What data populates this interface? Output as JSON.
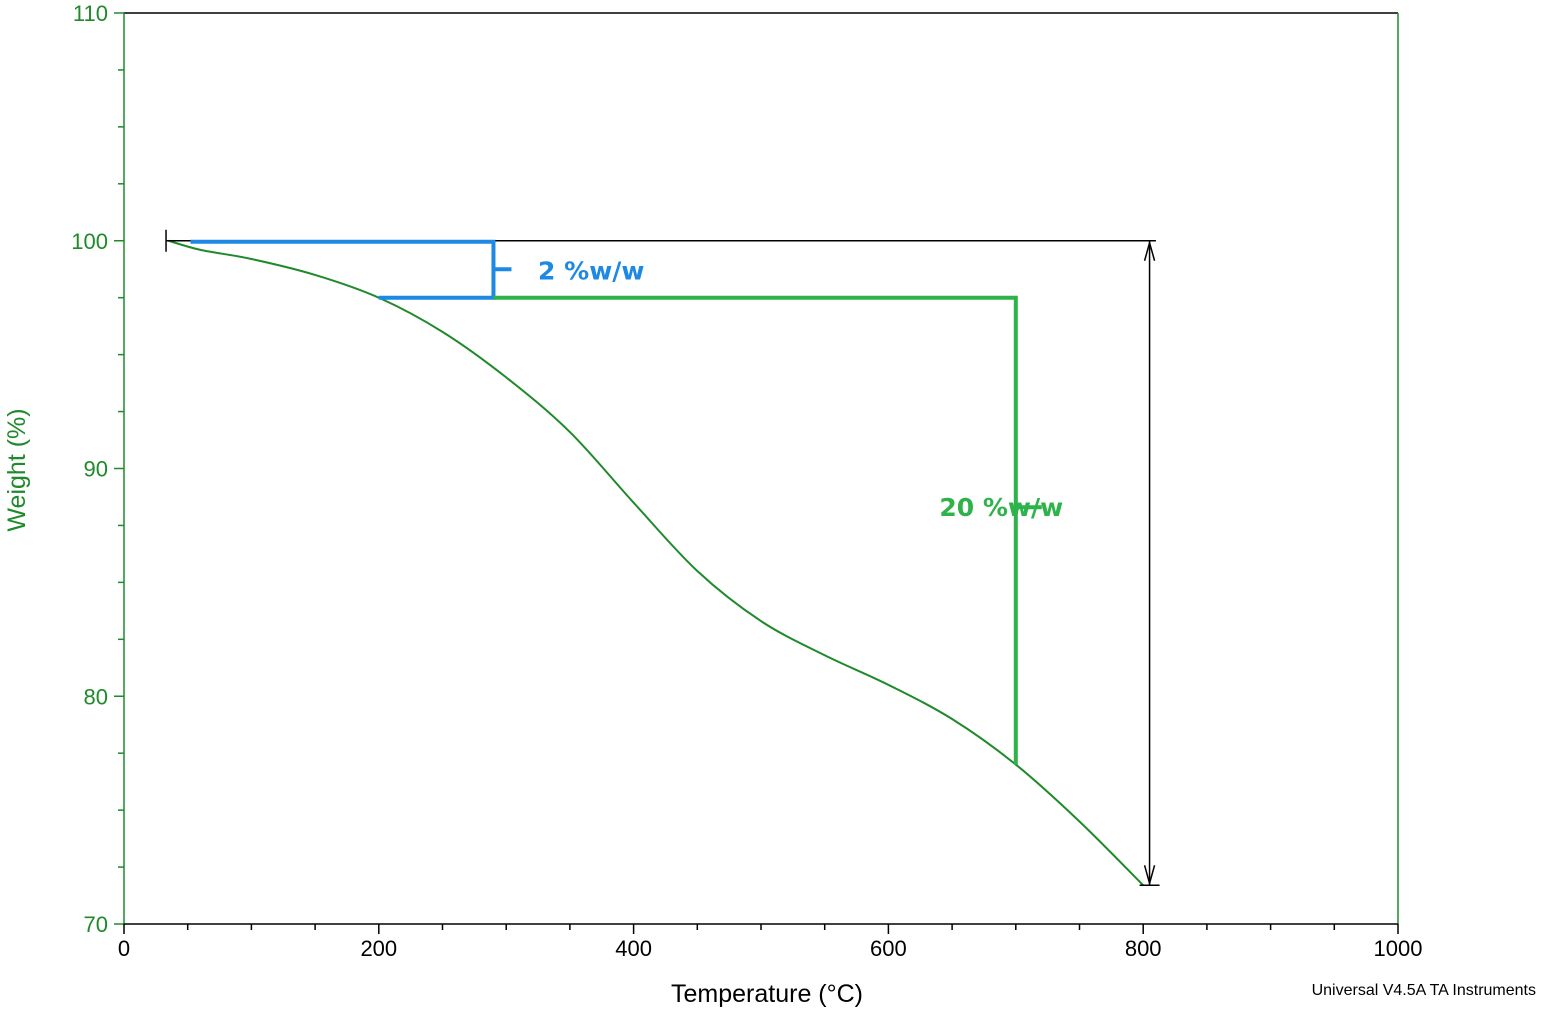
{
  "chart_data": {
    "type": "line",
    "xlabel": "Temperature (°C)",
    "ylabel": "Weight (%)",
    "xlim": [
      0,
      1000
    ],
    "ylim": [
      70,
      110
    ],
    "x_ticks": [
      0,
      200,
      400,
      600,
      800,
      1000
    ],
    "y_ticks": [
      70,
      80,
      90,
      100,
      110
    ],
    "grid": false,
    "series": [
      {
        "color": "#1f8a2a",
        "points": [
          [
            35,
            100.0
          ],
          [
            60,
            99.6
          ],
          [
            100,
            99.2
          ],
          [
            150,
            98.5
          ],
          [
            200,
            97.5
          ],
          [
            250,
            96.0
          ],
          [
            300,
            94.0
          ],
          [
            350,
            91.6
          ],
          [
            400,
            88.5
          ],
          [
            450,
            85.5
          ],
          [
            500,
            83.3
          ],
          [
            550,
            81.8
          ],
          [
            600,
            80.5
          ],
          [
            650,
            79.0
          ],
          [
            700,
            77.0
          ],
          [
            750,
            74.5
          ],
          [
            800,
            71.7
          ]
        ]
      }
    ],
    "annotations": [
      {
        "label": "2 %w/w",
        "color": "#1e88e5",
        "x_from": 200,
        "x_to": 290,
        "y_top": 100.0,
        "y_bottom": 97.5,
        "label_x": 325,
        "label_y": 98.7
      },
      {
        "label": "20 %w/w",
        "color": "#2db34a",
        "x_from": 290,
        "x_to": 700,
        "y_top": 97.5,
        "y_bottom": 77.0,
        "label_x": 640,
        "label_y": 88.3
      }
    ],
    "total_marker": {
      "color": "#000000",
      "x_from": 33,
      "x_to": 810,
      "x_arrow": 805,
      "y_top": 100.0,
      "y_bottom": 71.7
    },
    "axis_color": "#1f8a2a",
    "frame_color": "#000000"
  },
  "footer": {
    "text": "Universal V4.5A TA Instruments"
  }
}
